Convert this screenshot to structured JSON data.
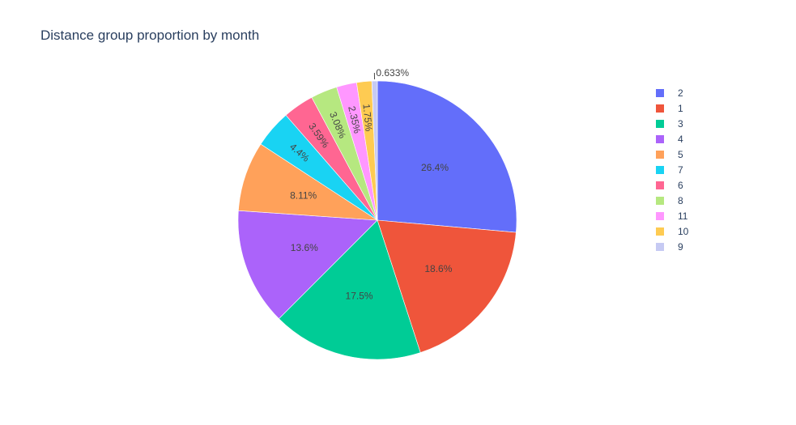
{
  "chart_data": {
    "type": "pie",
    "title": "Distance group proportion by month",
    "slices": [
      {
        "label": "2",
        "value": 26.4,
        "text": "26.4%",
        "color": "#636efa"
      },
      {
        "label": "1",
        "value": 18.6,
        "text": "18.6%",
        "color": "#ef553b"
      },
      {
        "label": "3",
        "value": 17.5,
        "text": "17.5%",
        "color": "#00cc96"
      },
      {
        "label": "4",
        "value": 13.6,
        "text": "13.6%",
        "color": "#ab63fa"
      },
      {
        "label": "5",
        "value": 8.11,
        "text": "8.11%",
        "color": "#ffa15a"
      },
      {
        "label": "7",
        "value": 4.4,
        "text": "4.4%",
        "color": "#19d3f3"
      },
      {
        "label": "6",
        "value": 3.59,
        "text": "3.59%",
        "color": "#ff6692"
      },
      {
        "label": "8",
        "value": 3.08,
        "text": "3.08%",
        "color": "#b6e880"
      },
      {
        "label": "11",
        "value": 2.35,
        "text": "2.35%",
        "color": "#ff97ff"
      },
      {
        "label": "10",
        "value": 1.75,
        "text": "1.75%",
        "color": "#fecb52"
      },
      {
        "label": "9",
        "value": 0.633,
        "text": "0.633%",
        "color": "#c6caf3"
      }
    ],
    "legend": {
      "position": "right"
    }
  }
}
